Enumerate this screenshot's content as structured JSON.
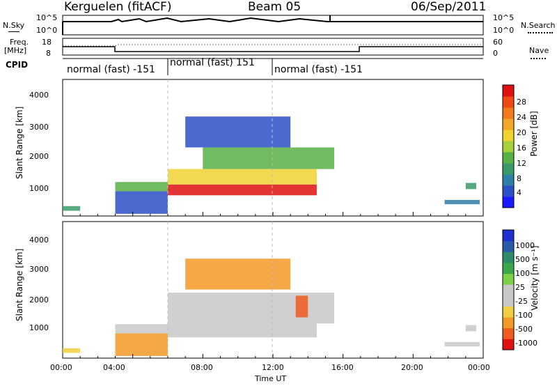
{
  "header": {
    "station": "Kerguelen (fitACF)",
    "beam": "Beam 05",
    "date": "06/Sep/2011"
  },
  "side_labels": {
    "nsky": "N.Sky",
    "nsearch": "N.Search",
    "freq": "Freq.",
    "freq_unit": "[MHz]",
    "nave": "Nave",
    "cpid": "CPID",
    "nsky_ticks": [
      "10^5",
      "10^0"
    ],
    "freq_ticks": [
      "18",
      "8"
    ],
    "nave_ticks": [
      "60",
      "0"
    ],
    "nsearch_ticks": [
      "10^5",
      "10^0"
    ]
  },
  "cpid_segments": [
    {
      "label": "normal (fast) -151",
      "start": 0,
      "end": 6
    },
    {
      "label": "normal (fast) 151",
      "start": 6,
      "end": 12
    },
    {
      "label": "normal (fast) -151",
      "start": 12,
      "end": 24
    }
  ],
  "axes": {
    "xlabel": "Time UT",
    "xticks": [
      "00:00",
      "04:00",
      "08:00",
      "12:00",
      "16:00",
      "20:00",
      "00:00"
    ],
    "ylabel": "Slant Range [km]",
    "yticks": [
      "1000",
      "2000",
      "3000",
      "4000"
    ]
  },
  "chart_data": [
    {
      "type": "heatmap",
      "name": "power-panel",
      "title": "",
      "xlabel": "Time UT",
      "ylabel": "Slant Range [km]",
      "xlim": [
        0,
        24
      ],
      "ylim": [
        180,
        4600
      ],
      "colorbar": {
        "label": "Power [dB]",
        "ticks": [
          "4",
          "8",
          "12",
          "16",
          "20",
          "24",
          "28"
        ],
        "colors": [
          "#1a1aff",
          "#2b50c8",
          "#2f7ea8",
          "#3a9a6a",
          "#58b046",
          "#a8d03a",
          "#f0d230",
          "#f2a826",
          "#f27a1e",
          "#ef4a16",
          "#e01010"
        ]
      },
      "regions": [
        {
          "t0": 0.0,
          "t1": 1.0,
          "r0": 350,
          "r1": 500,
          "level": 3
        },
        {
          "t0": 3.0,
          "t1": 6.0,
          "r0": 980,
          "r1": 1280,
          "level": 4
        },
        {
          "t0": 3.0,
          "t1": 6.0,
          "r0": 250,
          "r1": 980,
          "level": 1
        },
        {
          "t0": 6.0,
          "t1": 14.5,
          "r0": 850,
          "r1": 1200,
          "level": 10
        },
        {
          "t0": 6.0,
          "t1": 14.5,
          "r0": 1200,
          "r1": 1700,
          "level": 6
        },
        {
          "t0": 8.0,
          "t1": 15.5,
          "r0": 1700,
          "r1": 2400,
          "level": 4
        },
        {
          "t0": 7.0,
          "t1": 13.0,
          "r0": 2400,
          "r1": 3400,
          "level": 1
        },
        {
          "t0": 21.8,
          "t1": 23.8,
          "r0": 560,
          "r1": 700,
          "level": 2
        },
        {
          "t0": 23.0,
          "t1": 23.6,
          "r0": 1050,
          "r1": 1250,
          "level": 3
        }
      ]
    },
    {
      "type": "heatmap",
      "name": "velocity-panel",
      "title": "",
      "xlabel": "Time UT",
      "ylabel": "Slant Range [km]",
      "xlim": [
        0,
        24
      ],
      "ylim": [
        180,
        4600
      ],
      "colorbar": {
        "label": "Velocity [m s⁻¹]",
        "ticks": [
          "1000",
          "500",
          "100",
          "25",
          "-25",
          "-100",
          "-500",
          "-1000"
        ],
        "colors": [
          "#2030d0",
          "#2a5aa8",
          "#2f8a6a",
          "#3aa84a",
          "#7cd04a",
          "#c8c8c8",
          "#c8c8c8",
          "#f0d040",
          "#f29a26",
          "#ef5a1e",
          "#e01010"
        ]
      },
      "regions": [
        {
          "t0": 0.0,
          "t1": 1.0,
          "r0": 350,
          "r1": 500,
          "level": 7
        },
        {
          "t0": 3.0,
          "t1": 6.0,
          "r0": 980,
          "r1": 1280,
          "level": 5
        },
        {
          "t0": 3.0,
          "t1": 6.0,
          "r0": 250,
          "r1": 980,
          "level": 8
        },
        {
          "t0": 6.0,
          "t1": 14.5,
          "r0": 850,
          "r1": 1300,
          "level": 5
        },
        {
          "t0": 6.0,
          "t1": 15.5,
          "r0": 1300,
          "r1": 2300,
          "level": 6
        },
        {
          "t0": 13.3,
          "t1": 14.0,
          "r0": 1500,
          "r1": 2200,
          "level": 9
        },
        {
          "t0": 7.0,
          "t1": 13.0,
          "r0": 2400,
          "r1": 3400,
          "level": 8
        },
        {
          "t0": 21.8,
          "t1": 23.8,
          "r0": 560,
          "r1": 700,
          "level": 5
        },
        {
          "t0": 23.0,
          "t1": 23.6,
          "r0": 1050,
          "r1": 1250,
          "level": 6
        }
      ]
    }
  ]
}
